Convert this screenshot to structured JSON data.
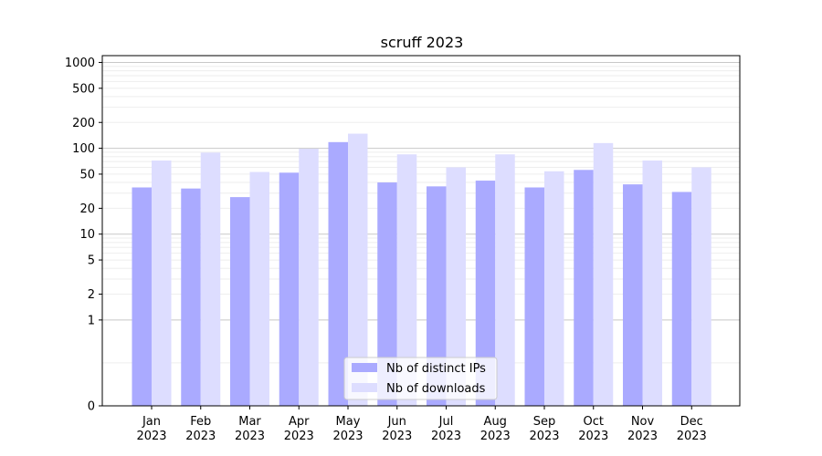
{
  "chart_data": {
    "type": "bar",
    "title": "scruff 2023",
    "xlabel": "",
    "ylabel": "",
    "y_scale": "symlog",
    "ylim": [
      0,
      1200
    ],
    "y_ticks": [
      "0",
      "1",
      "2",
      "5",
      "10",
      "20",
      "50",
      "100",
      "200",
      "500",
      "1000"
    ],
    "y_tick_values": [
      0,
      1,
      2,
      5,
      10,
      20,
      50,
      100,
      200,
      500,
      1000
    ],
    "categories": [
      [
        "Jan",
        "2023"
      ],
      [
        "Feb",
        "2023"
      ],
      [
        "Mar",
        "2023"
      ],
      [
        "Apr",
        "2023"
      ],
      [
        "May",
        "2023"
      ],
      [
        "Jun",
        "2023"
      ],
      [
        "Jul",
        "2023"
      ],
      [
        "Aug",
        "2023"
      ],
      [
        "Sep",
        "2023"
      ],
      [
        "Oct",
        "2023"
      ],
      [
        "Nov",
        "2023"
      ],
      [
        "Dec",
        "2023"
      ]
    ],
    "series": [
      {
        "name": "Nb of distinct IPs",
        "color": "#aaaaff",
        "values": [
          35,
          34,
          27,
          52,
          118,
          40,
          36,
          42,
          35,
          56,
          38,
          31
        ]
      },
      {
        "name": "Nb of downloads",
        "color": "#ddddff",
        "values": [
          72,
          89,
          53,
          99,
          148,
          85,
          60,
          85,
          54,
          115,
          72,
          60
        ]
      }
    ],
    "grid": true,
    "legend_position": "lower center"
  }
}
